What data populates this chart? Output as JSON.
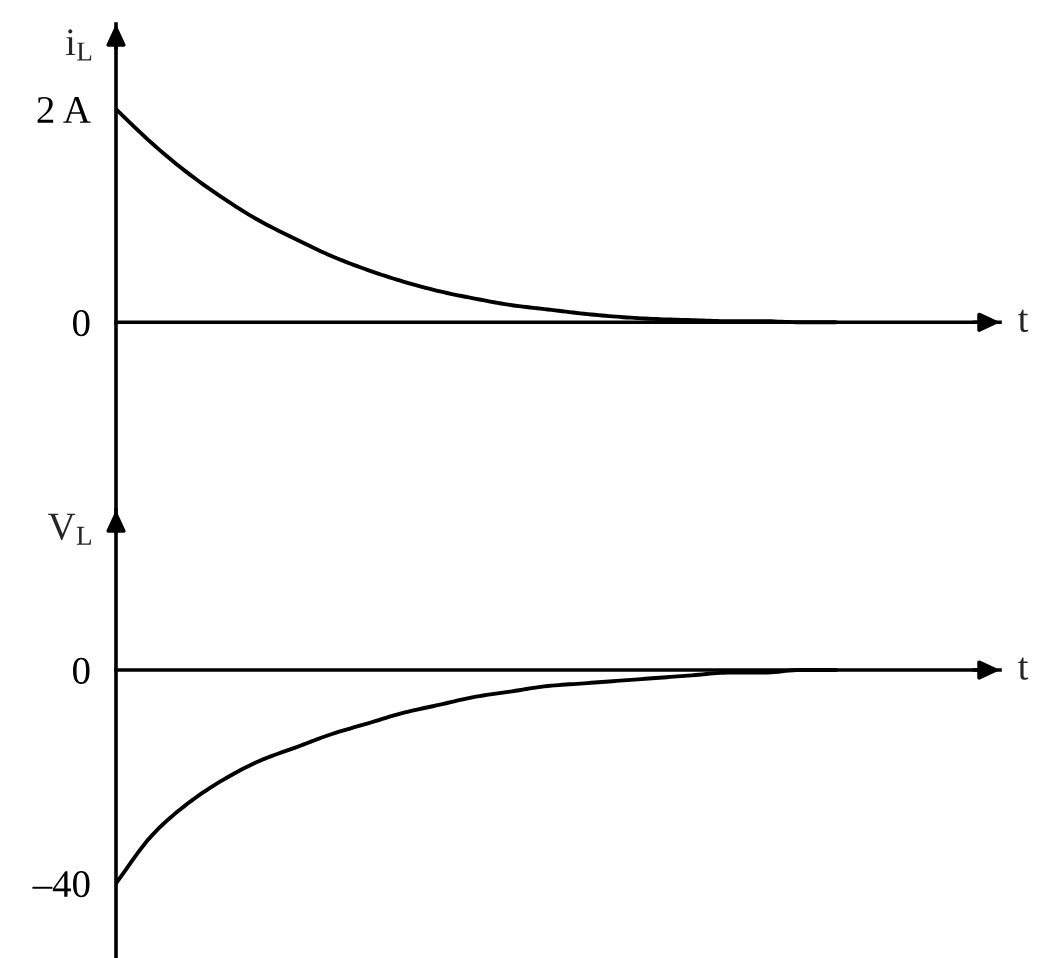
{
  "chart_data": [
    {
      "type": "line",
      "categories": [
        null,
        null,
        null,
        null,
        null,
        null,
        null,
        null,
        null,
        null,
        null,
        null,
        null,
        null,
        null,
        null,
        null,
        null,
        null,
        null,
        null
      ],
      "series": [
        {
          "color": "#000000",
          "values": [
            2.0,
            1.68,
            1.4,
            1.16,
            0.95,
            0.78,
            0.62,
            0.49,
            0.38,
            0.29,
            0.22,
            0.16,
            0.12,
            0.08,
            0.05,
            0.03,
            0.02,
            0.01,
            0.01,
            0.0,
            0.0
          ]
        }
      ],
      "ylim": [
        -1.8,
        2.8
      ],
      "yticks": [
        0,
        {
          "value": 2,
          "label": "2 A"
        }
      ],
      "xlabel": "t",
      "ylabel": "i$_{L}$",
      "tick_labels": "y"
    },
    {
      "type": "line",
      "categories": [
        null,
        null,
        null,
        null,
        null,
        null,
        null,
        null,
        null,
        null,
        null,
        null,
        null,
        null,
        null,
        null,
        null,
        null,
        null,
        null,
        null
      ],
      "series": [
        {
          "color": "#000000",
          "values": [
            -40,
            -31,
            -25,
            -20.5,
            -17,
            -14.5,
            -12,
            -10,
            -8,
            -6.5,
            -5,
            -4,
            -3,
            -2.5,
            -2,
            -1.5,
            -1,
            -0.5,
            -0.5,
            0,
            0
          ]
        }
      ],
      "ylim": [
        -54,
        30
      ],
      "yticks": [
        0,
        {
          "value": -40,
          "label": "–40"
        }
      ],
      "xlabel": "t",
      "ylabel": "V$_{L}$",
      "tick_labels": "y"
    }
  ]
}
